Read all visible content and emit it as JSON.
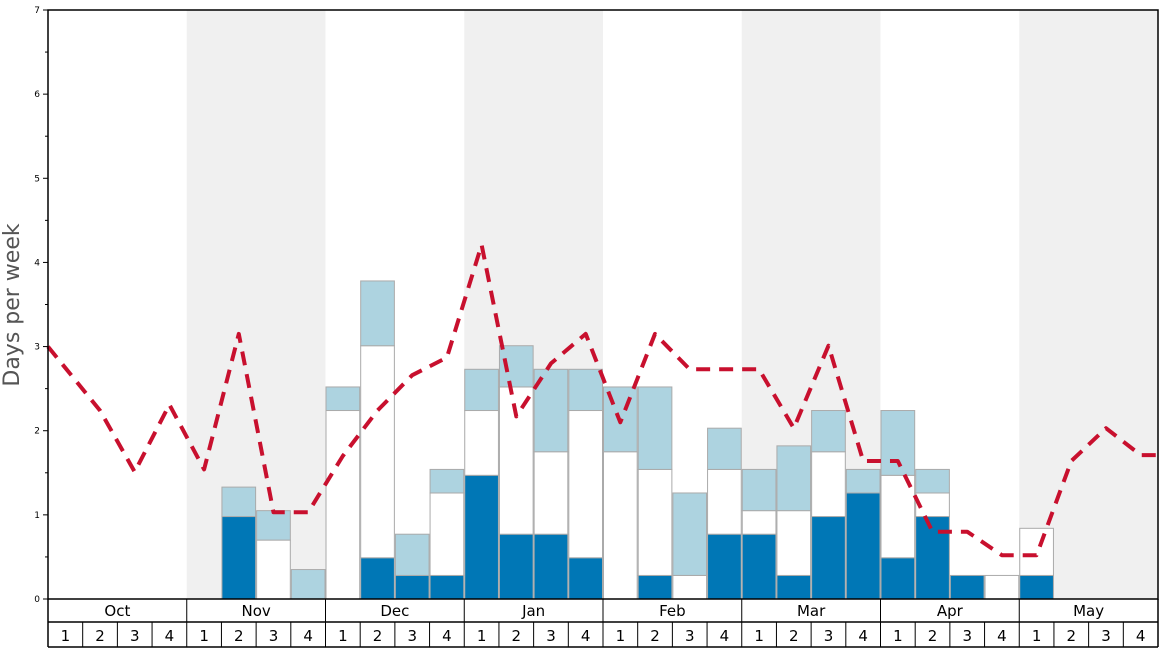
{
  "chart_data": {
    "type": "bar",
    "stacked": true,
    "title": "",
    "xlabel": "",
    "ylabel": "Days per week",
    "ylim": [
      0,
      7
    ],
    "yticks": [
      "0",
      "1",
      "2",
      "3",
      "4",
      "5",
      "6",
      "7"
    ],
    "months": [
      "Oct",
      "Nov",
      "Dec",
      "Jan",
      "Feb",
      "Mar",
      "Apr",
      "May"
    ],
    "weeks": [
      "1",
      "2",
      "3",
      "4"
    ],
    "alternate_month_shading": true,
    "colors": {
      "dark": "#0077b6",
      "middle": "#ffffff",
      "light": "#add3e0",
      "line": "#c8102e",
      "shade": "#f0f0f0",
      "bar_border": "#aaaaaa"
    },
    "series": [
      {
        "key": "dark",
        "values": [
          0,
          0,
          0,
          0,
          0,
          0.98,
          0,
          0,
          0,
          0.49,
          0.28,
          0.28,
          1.47,
          0.77,
          0.77,
          0.49,
          0,
          0.28,
          0,
          0.77,
          0.77,
          0.28,
          0.98,
          1.26,
          0.49,
          0.98,
          0.28,
          0,
          0.28,
          0,
          0,
          0
        ]
      },
      {
        "key": "middle",
        "values": [
          0,
          0,
          0,
          0,
          0,
          0,
          0.7,
          0,
          2.24,
          2.52,
          0,
          0.98,
          0.77,
          1.75,
          0.98,
          1.75,
          1.75,
          1.26,
          0.28,
          0.77,
          0.28,
          0.77,
          0.77,
          0,
          0.98,
          0.28,
          0,
          0.28,
          0.56,
          0,
          0,
          0
        ]
      },
      {
        "key": "light",
        "values": [
          0,
          0,
          0,
          0,
          0,
          0.35,
          0.35,
          0.35,
          0.28,
          0.77,
          0.49,
          0.28,
          0.49,
          0.49,
          0.98,
          0.49,
          0.77,
          0.98,
          0.98,
          0.49,
          0.49,
          0.77,
          0.49,
          0.28,
          0.77,
          0.28,
          0,
          0,
          0,
          0,
          0,
          0
        ]
      },
      {
        "key": "line",
        "style": "dashed",
        "values": [
          3.0,
          2.24,
          1.51,
          2.31,
          1.54,
          3.15,
          1.03,
          1.03,
          1.7,
          2.24,
          2.66,
          2.87,
          4.21,
          2.17,
          2.8,
          3.15,
          2.1,
          3.15,
          2.73,
          2.73,
          2.73,
          2.03,
          3.01,
          1.64,
          1.64,
          0.8,
          0.8,
          0.52,
          0.52,
          1.64,
          2.03,
          1.71
        ]
      }
    ]
  }
}
